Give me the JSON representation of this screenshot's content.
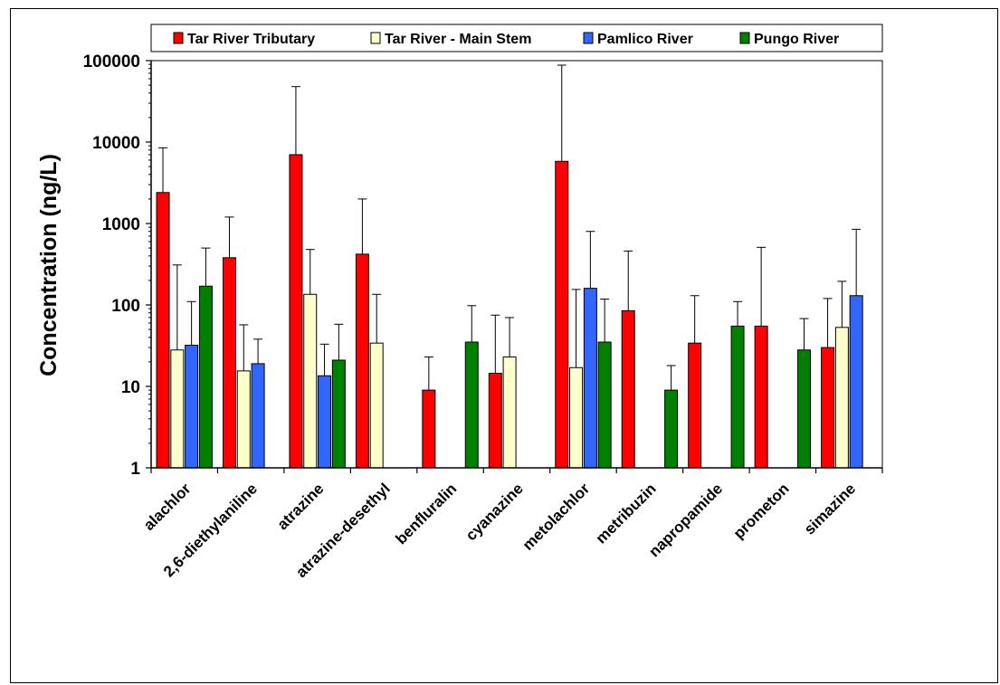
{
  "chart_data": {
    "type": "bar",
    "ylabel": "Concentration (ng/L)",
    "xlabel": "",
    "yscale": "log",
    "ylim": [
      1,
      100000
    ],
    "yticks": [
      "1",
      "10",
      "100",
      "1000",
      "10000",
      "100000"
    ],
    "legend_position": "top",
    "categories": [
      "alachlor",
      "2,6-diethylaniline",
      "atrazine",
      "atrazine-desethyl",
      "benfluralin",
      "cyanazine",
      "metolachlor",
      "metribuzin",
      "napropamide",
      "prometon",
      "simazine"
    ],
    "series": [
      {
        "name": "Tar River Tributary",
        "color": "#ff0000",
        "values": [
          2400,
          380,
          7000,
          420,
          9,
          14.5,
          5800,
          85,
          34,
          55,
          30
        ],
        "error_upper": [
          8500,
          1200,
          48000,
          2000,
          23,
          75,
          88000,
          460,
          130,
          510,
          120
        ]
      },
      {
        "name": "Tar River - Main Stem",
        "color": "#ffffcc",
        "values": [
          28,
          15.5,
          135,
          34,
          null,
          23,
          17,
          null,
          null,
          null,
          53
        ],
        "error_upper": [
          310,
          57,
          480,
          135,
          null,
          70,
          155,
          null,
          null,
          null,
          195
        ]
      },
      {
        "name": "Pamlico River",
        "color": "#3366ff",
        "values": [
          32,
          19,
          13.5,
          null,
          null,
          null,
          160,
          null,
          null,
          null,
          130
        ],
        "error_upper": [
          110,
          38,
          33,
          null,
          null,
          null,
          800,
          null,
          null,
          null,
          850
        ]
      },
      {
        "name": "Pungo River",
        "color": "#008000",
        "values": [
          170,
          null,
          21,
          null,
          35,
          null,
          35,
          9,
          55,
          28,
          null
        ],
        "error_upper": [
          500,
          null,
          58,
          null,
          98,
          null,
          118,
          18,
          110,
          68,
          null
        ]
      }
    ]
  }
}
